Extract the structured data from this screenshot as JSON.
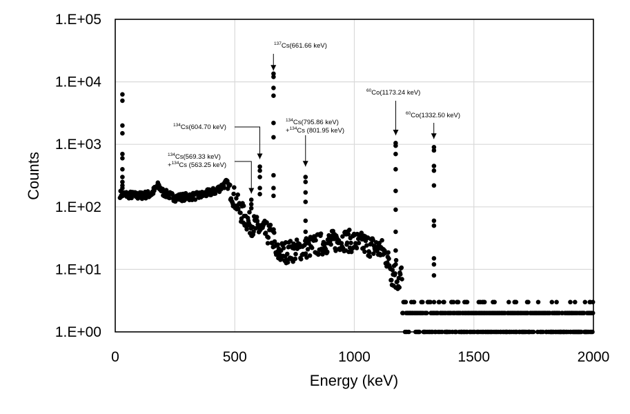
{
  "chart_data": {
    "type": "scatter",
    "title": "",
    "xlabel": "Energy (keV)",
    "ylabel": "Counts",
    "xlim": [
      0,
      2000
    ],
    "ylim": [
      1,
      100000
    ],
    "yscale": "log",
    "grid": true,
    "legend": "none",
    "marker_color": "#000000",
    "x_ticks": [
      "0",
      "500",
      "1000",
      "1500",
      "2000"
    ],
    "y_ticks": [
      "1.E+00",
      "1.E+01",
      "1.E+02",
      "1.E+03",
      "1.E+04",
      "1.E+05"
    ],
    "x_tick_values": [
      0,
      500,
      1000,
      1500,
      2000
    ],
    "y_tick_values": [
      1,
      10,
      100,
      1000,
      10000,
      100000
    ],
    "annotations": [
      {
        "lines": [
          {
            "sup": "137",
            "text": "Cs(661.66 keV)"
          }
        ],
        "arrow_x": 661.66,
        "arrow_tip_y": 13000
      },
      {
        "lines": [
          {
            "sup": "134",
            "text": "Cs(604.70 keV)"
          }
        ],
        "arrow_x": 604.7,
        "arrow_tip_y": 500
      },
      {
        "lines": [
          {
            "sup": "134",
            "text": "Cs(569.33 keV)"
          },
          {
            "prefix": "+",
            "sup": "134",
            "text": "Cs (563.25 keV)"
          }
        ],
        "arrow_x": 569.33,
        "arrow_tip_y": 140
      },
      {
        "lines": [
          {
            "sup": "134",
            "text": "Cs(795.86 keV)"
          },
          {
            "prefix": "+",
            "sup": "134",
            "text": "Cs (801.95 keV)"
          }
        ],
        "arrow_x": 795.86,
        "arrow_tip_y": 380
      },
      {
        "lines": [
          {
            "sup": "60",
            "text": "Co(1173.24 keV)"
          }
        ],
        "arrow_x": 1173.24,
        "arrow_tip_y": 1200
      },
      {
        "lines": [
          {
            "sup": "60",
            "text": "Co(1332.50 keV)"
          }
        ],
        "arrow_x": 1332.5,
        "arrow_tip_y": 1050
      }
    ],
    "peaks": [
      {
        "x": 30,
        "values": [
          6300,
          5000,
          2000,
          1500,
          700,
          600,
          400,
          300,
          250,
          220,
          200,
          170
        ]
      },
      {
        "x": 569,
        "values": [
          130,
          110,
          95
        ]
      },
      {
        "x": 605,
        "values": [
          440,
          380,
          300,
          200,
          160
        ]
      },
      {
        "x": 662,
        "values": [
          13500,
          12000,
          8000,
          6000,
          2200,
          1300,
          320,
          200,
          150
        ]
      },
      {
        "x": 796,
        "values": [
          300,
          250,
          170,
          120,
          60,
          40
        ]
      },
      {
        "x": 1173,
        "values": [
          1050,
          950,
          700,
          400,
          180,
          90,
          40,
          20,
          12
        ]
      },
      {
        "x": 1333,
        "values": [
          900,
          800,
          450,
          380,
          220,
          60,
          50,
          15,
          12,
          8
        ]
      }
    ],
    "continuum": [
      {
        "x": 20,
        "y": 160
      },
      {
        "x": 100,
        "y": 150
      },
      {
        "x": 150,
        "y": 160
      },
      {
        "x": 180,
        "y": 220
      },
      {
        "x": 200,
        "y": 170
      },
      {
        "x": 250,
        "y": 140
      },
      {
        "x": 350,
        "y": 150
      },
      {
        "x": 420,
        "y": 180
      },
      {
        "x": 465,
        "y": 240
      },
      {
        "x": 480,
        "y": 200
      },
      {
        "x": 520,
        "y": 90
      },
      {
        "x": 560,
        "y": 55
      },
      {
        "x": 600,
        "y": 45
      },
      {
        "x": 650,
        "y": 35
      },
      {
        "x": 665,
        "y": 30
      },
      {
        "x": 670,
        "y": 18
      },
      {
        "x": 750,
        "y": 20
      },
      {
        "x": 850,
        "y": 25
      },
      {
        "x": 950,
        "y": 30
      },
      {
        "x": 1050,
        "y": 25
      },
      {
        "x": 1120,
        "y": 20
      },
      {
        "x": 1160,
        "y": 10
      },
      {
        "x": 1200,
        "y": 7
      },
      {
        "x": 1300,
        "y": 4
      },
      {
        "x": 1400,
        "y": 2.5
      },
      {
        "x": 1600,
        "y": 2
      },
      {
        "x": 2000,
        "y": 2
      }
    ]
  }
}
